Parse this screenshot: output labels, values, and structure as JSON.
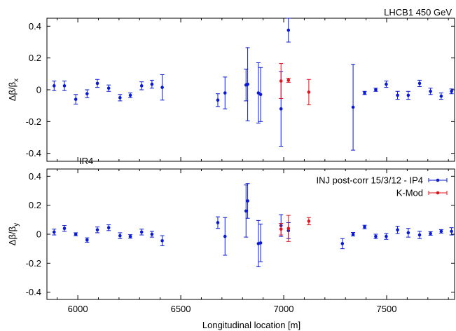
{
  "figure": {
    "top_right_label": "LHCB1 450 GeV",
    "middle_label": "IR4",
    "xlabel": "Longitudinal location [m]"
  },
  "chart_data": [
    {
      "type": "scatter",
      "panel": "top",
      "ylabel": "Δβ/β",
      "ylabel_subscript": "x",
      "xlim": [
        5850,
        7830
      ],
      "ylim": [
        -0.45,
        0.45
      ],
      "yticks": [
        -0.4,
        -0.2,
        0,
        0.2,
        0.4
      ],
      "ytick_labels": [
        "-0.4",
        "-0.2",
        "0",
        "0.2",
        "0.4"
      ],
      "grid": false,
      "series": [
        {
          "color": "#0a19d4",
          "points": [
            {
              "x": 5885,
              "y": 0.025,
              "err": 0.03
            },
            {
              "x": 5935,
              "y": 0.025,
              "err": 0.03
            },
            {
              "x": 5990,
              "y": -0.06,
              "err": 0.03
            },
            {
              "x": 6045,
              "y": -0.025,
              "err": 0.025
            },
            {
              "x": 6095,
              "y": 0.04,
              "err": 0.025
            },
            {
              "x": 6150,
              "y": 0.01,
              "err": 0.02
            },
            {
              "x": 6205,
              "y": -0.05,
              "err": 0.02
            },
            {
              "x": 6255,
              "y": -0.035,
              "err": 0.015
            },
            {
              "x": 6310,
              "y": 0.025,
              "err": 0.025
            },
            {
              "x": 6360,
              "y": 0.035,
              "err": 0.025
            },
            {
              "x": 6410,
              "y": 0.015,
              "err": 0.08
            },
            {
              "x": 6680,
              "y": -0.065,
              "err": 0.04
            },
            {
              "x": 6715,
              "y": -0.02,
              "err": 0.1
            },
            {
              "x": 6817,
              "y": 0.03,
              "err": 0.1
            },
            {
              "x": 6825,
              "y": 0.035,
              "err": 0.23
            },
            {
              "x": 6877,
              "y": -0.02,
              "err": 0.19
            },
            {
              "x": 6888,
              "y": -0.03,
              "err": 0.17
            },
            {
              "x": 6987,
              "y": -0.12,
              "err": 0.235
            },
            {
              "x": 7023,
              "y": 0.375,
              "err": 0.075
            },
            {
              "x": 7337,
              "y": -0.11,
              "err": 0.27
            },
            {
              "x": 7393,
              "y": -0.02,
              "err": 0.01
            },
            {
              "x": 7447,
              "y": 0.0,
              "err": 0.01
            },
            {
              "x": 7498,
              "y": 0.035,
              "err": 0.02
            },
            {
              "x": 7553,
              "y": -0.035,
              "err": 0.025
            },
            {
              "x": 7605,
              "y": -0.035,
              "err": 0.025
            },
            {
              "x": 7660,
              "y": 0.04,
              "err": 0.02
            },
            {
              "x": 7713,
              "y": -0.01,
              "err": 0.02
            },
            {
              "x": 7765,
              "y": -0.04,
              "err": 0.02
            },
            {
              "x": 7815,
              "y": -0.01,
              "err": 0.015
            }
          ]
        },
        {
          "color": "#e0141e",
          "points": [
            {
              "x": 6987,
              "y": 0.055,
              "err": 0.11
            },
            {
              "x": 7023,
              "y": 0.06,
              "err": 0.013
            },
            {
              "x": 7122,
              "y": -0.015,
              "err": 0.08
            }
          ]
        }
      ]
    },
    {
      "type": "scatter",
      "panel": "bottom",
      "ylabel": "Δβ/β",
      "ylabel_subscript": "y",
      "xlim": [
        5850,
        7830
      ],
      "ylim": [
        -0.45,
        0.45
      ],
      "yticks": [
        -0.4,
        -0.2,
        0,
        0.2,
        0.4
      ],
      "ytick_labels": [
        "-0.4",
        "-0.2",
        "0",
        "0.2",
        "0.4"
      ],
      "xticks": [
        6000,
        6500,
        7000,
        7500
      ],
      "xtick_labels": [
        "6000",
        "6500",
        "7000",
        "7500"
      ],
      "grid": false,
      "legend_position": "top-right",
      "series": [
        {
          "name": "INJ post-corr 15/3/12 - IP4",
          "color": "#0a19d4",
          "points": [
            {
              "x": 5885,
              "y": 0.015,
              "err": 0.02
            },
            {
              "x": 5935,
              "y": 0.04,
              "err": 0.02
            },
            {
              "x": 5990,
              "y": 0.0,
              "err": 0.01
            },
            {
              "x": 6045,
              "y": -0.04,
              "err": 0.015
            },
            {
              "x": 6095,
              "y": 0.03,
              "err": 0.02
            },
            {
              "x": 6150,
              "y": 0.045,
              "err": 0.02
            },
            {
              "x": 6205,
              "y": -0.01,
              "err": 0.02
            },
            {
              "x": 6255,
              "y": -0.015,
              "err": 0.012
            },
            {
              "x": 6310,
              "y": 0.015,
              "err": 0.02
            },
            {
              "x": 6360,
              "y": 0.0,
              "err": 0.02
            },
            {
              "x": 6410,
              "y": -0.045,
              "err": 0.035
            },
            {
              "x": 6680,
              "y": 0.08,
              "err": 0.04
            },
            {
              "x": 6715,
              "y": -0.015,
              "err": 0.13
            },
            {
              "x": 6817,
              "y": 0.16,
              "err": 0.18
            },
            {
              "x": 6825,
              "y": 0.23,
              "err": 0.12
            },
            {
              "x": 6877,
              "y": -0.065,
              "err": 0.16
            },
            {
              "x": 6888,
              "y": -0.06,
              "err": 0.13
            },
            {
              "x": 6987,
              "y": 0.06,
              "err": 0.075
            },
            {
              "x": 7023,
              "y": 0.025,
              "err": 0.055
            },
            {
              "x": 7285,
              "y": -0.065,
              "err": 0.035
            },
            {
              "x": 7337,
              "y": 0.0,
              "err": 0.012
            },
            {
              "x": 7393,
              "y": 0.05,
              "err": 0.012
            },
            {
              "x": 7447,
              "y": -0.015,
              "err": 0.015
            },
            {
              "x": 7498,
              "y": -0.015,
              "err": 0.02
            },
            {
              "x": 7553,
              "y": 0.03,
              "err": 0.025
            },
            {
              "x": 7605,
              "y": 0.01,
              "err": 0.03
            },
            {
              "x": 7660,
              "y": -0.005,
              "err": 0.025
            },
            {
              "x": 7713,
              "y": 0.005,
              "err": 0.012
            },
            {
              "x": 7765,
              "y": 0.02,
              "err": 0.012
            },
            {
              "x": 7815,
              "y": 0.02,
              "err": 0.025
            }
          ]
        },
        {
          "name": "K-Mod",
          "color": "#e0141e",
          "points": [
            {
              "x": 6987,
              "y": 0.035,
              "err": 0.04
            },
            {
              "x": 7023,
              "y": 0.04,
              "err": 0.09
            },
            {
              "x": 7122,
              "y": 0.09,
              "err": 0.025
            }
          ]
        }
      ]
    }
  ]
}
